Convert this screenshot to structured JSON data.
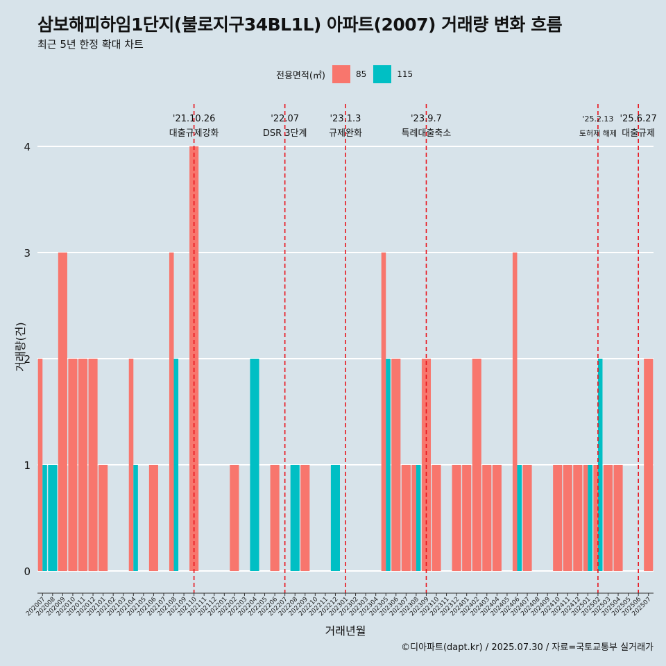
{
  "title": "삼보해피하임1단지(불로지구34BL1L) 아파트(2007) 거래량 변화 흐름",
  "subtitle": "최근 5년 한정 확대 차트",
  "caption": "©디아파트(dapt.kr) / 2025.07.30 / 자료=국토교통부 실거래가",
  "legend": {
    "title": "전용면적(㎡)"
  },
  "colors": {
    "s85": "#f8766d",
    "s115": "#00bfc4",
    "background": "#d7e3ea",
    "grid": "#ffffff",
    "event_line": "#e8141c"
  },
  "chart_data": {
    "type": "bar",
    "xlabel": "거래년월",
    "ylabel": "거래량(건)",
    "ylim": [
      0,
      4
    ],
    "yticks": [
      0,
      1,
      2,
      3,
      4
    ],
    "grid": true,
    "legend_position": "top",
    "categories": [
      "202007",
      "202008",
      "202009",
      "202010",
      "202011",
      "202012",
      "202101",
      "202102",
      "202103",
      "202104",
      "202105",
      "202106",
      "202107",
      "202108",
      "202109",
      "202110",
      "202111",
      "202112",
      "202201",
      "202202",
      "202203",
      "202204",
      "202205",
      "202206",
      "202207",
      "202208",
      "202209",
      "202210",
      "202211",
      "202212",
      "202301",
      "202302",
      "202303",
      "202304",
      "202305",
      "202306",
      "202307",
      "202308",
      "202309",
      "202310",
      "202311",
      "202312",
      "202401",
      "202402",
      "202403",
      "202404",
      "202405",
      "202406",
      "202407",
      "202408",
      "202409",
      "202410",
      "202411",
      "202412",
      "202501",
      "202502",
      "202503",
      "202504",
      "202505",
      "202506",
      "202507"
    ],
    "series": [
      {
        "name": "85",
        "color": "#f8766d",
        "values": [
          2,
          0,
          3,
          2,
          2,
          2,
          1,
          0,
          0,
          2,
          0,
          1,
          0,
          3,
          0,
          4,
          0,
          0,
          0,
          1,
          0,
          0,
          0,
          1,
          0,
          0,
          1,
          0,
          0,
          0,
          0,
          0,
          0,
          0,
          3,
          2,
          1,
          1,
          2,
          1,
          0,
          1,
          1,
          2,
          1,
          1,
          0,
          3,
          1,
          0,
          0,
          1,
          1,
          1,
          1,
          1,
          1,
          1,
          0,
          0,
          2
        ]
      },
      {
        "name": "115",
        "color": "#00bfc4",
        "values": [
          1,
          1,
          0,
          0,
          0,
          0,
          0,
          0,
          0,
          1,
          0,
          0,
          0,
          2,
          0,
          0,
          0,
          0,
          0,
          0,
          0,
          2,
          0,
          0,
          0,
          1,
          0,
          0,
          0,
          1,
          0,
          0,
          0,
          0,
          2,
          0,
          0,
          1,
          0,
          0,
          0,
          0,
          0,
          0,
          0,
          0,
          0,
          1,
          0,
          0,
          0,
          0,
          0,
          0,
          1,
          2,
          0,
          0,
          0,
          0,
          0
        ]
      }
    ],
    "events": [
      {
        "date": "'21.10.26",
        "label": "대출규제강화",
        "month": "202110"
      },
      {
        "date": "'22.07",
        "label": "DSR 3단계",
        "month": "202207"
      },
      {
        "date": "'23.1.3",
        "label": "규제완화",
        "month": "202301"
      },
      {
        "date": "'23.9.7",
        "label": "특례대출축소",
        "month": "202309"
      },
      {
        "date": "'25.2.13",
        "label": "토허제 해제",
        "month": "202502"
      },
      {
        "date": "'25.6.27",
        "label": "대출규제",
        "month": "202506"
      }
    ]
  }
}
